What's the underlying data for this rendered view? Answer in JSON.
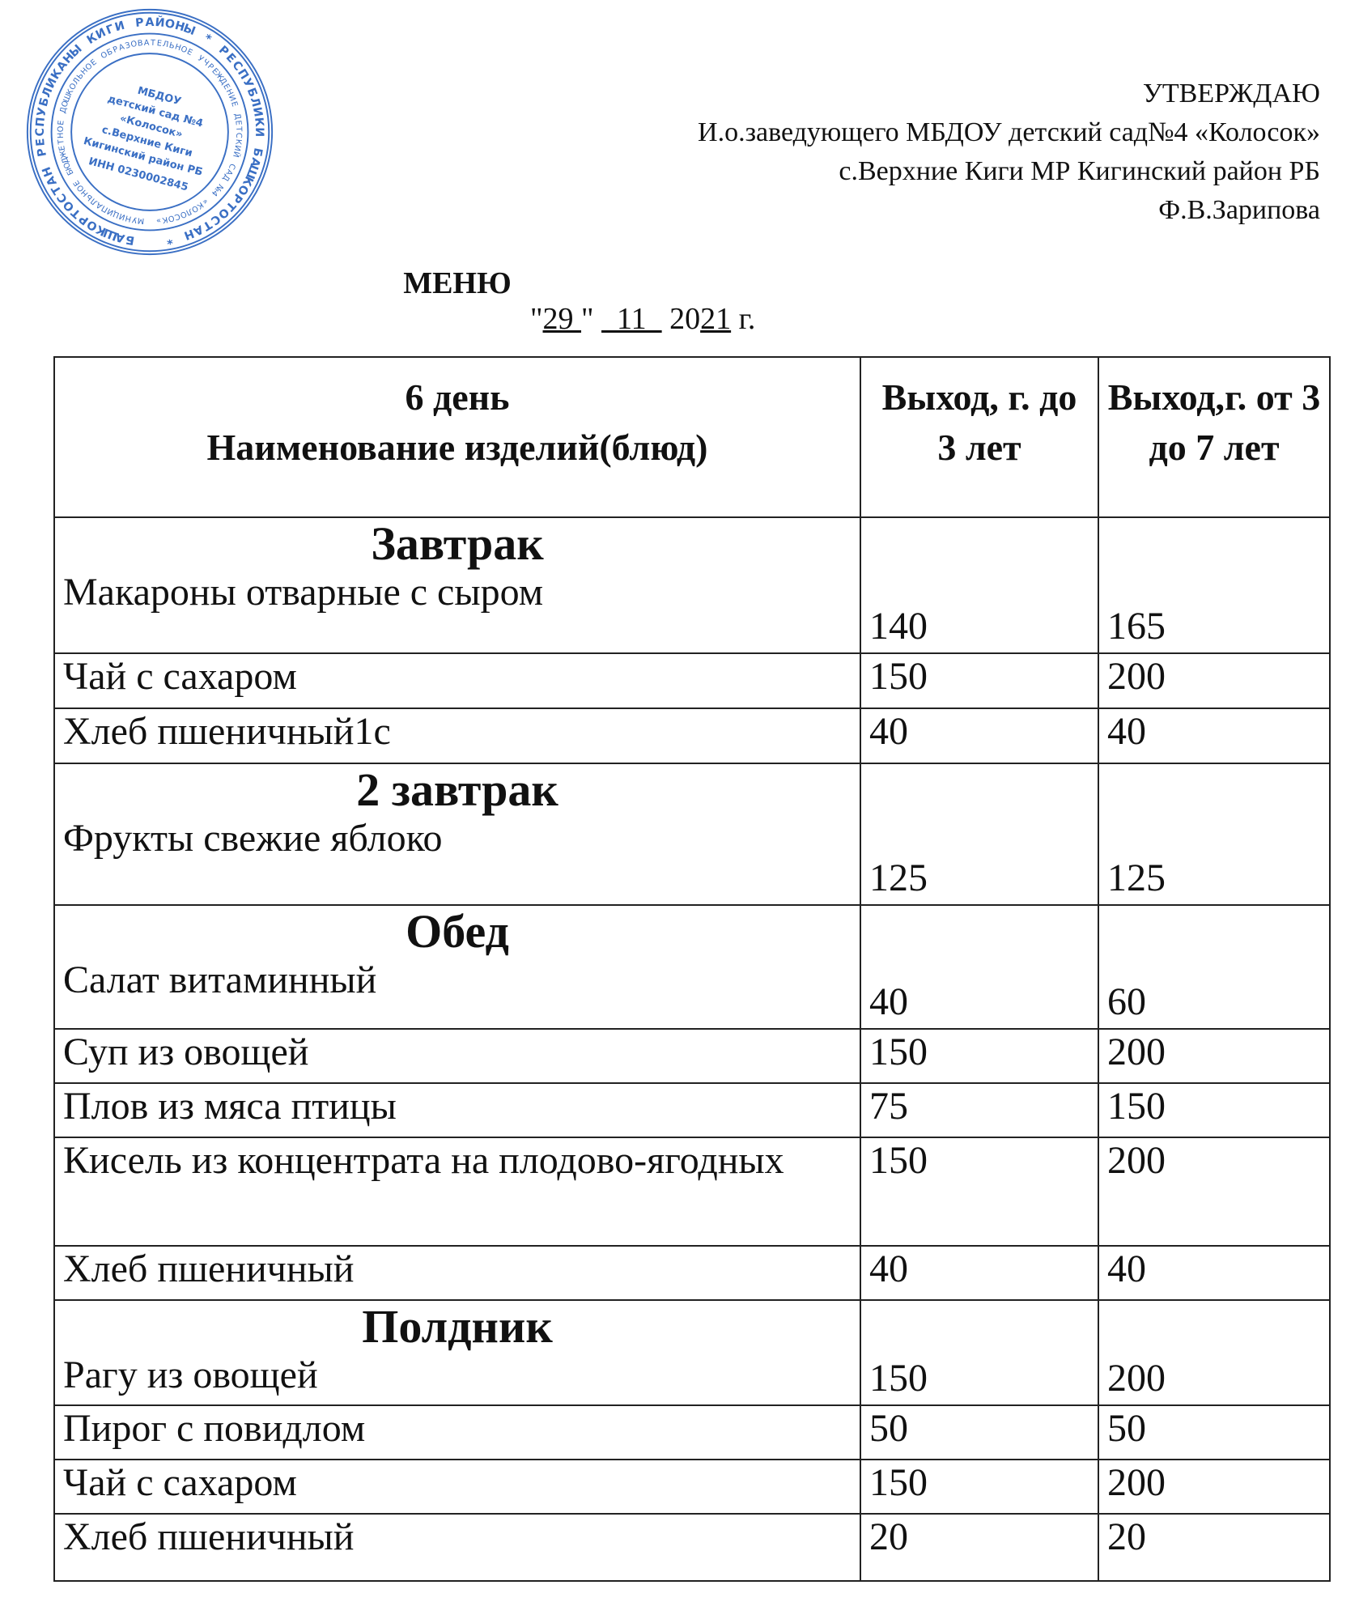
{
  "approval": {
    "heading": "УТВЕРЖДАЮ",
    "line1": "И.о.заведующего МБДОУ детский сад№4 «Колосок»",
    "line2": "с.Верхние Киги МР Кигинский район РБ",
    "signatory": "Ф.В.Зарипова"
  },
  "stamp": {
    "outer_text": "БАШКОРТОСТАН РЕСПУБЛИКАНЫ КИГИ РАЙОНЫ * РЕСПУБЛИКИ БАШКОРТОСТАН *",
    "inner_text": "МУНИЦИПАЛЬНОЕ БЮДЖЕТНОЕ ДОШКОЛЬНОЕ ОБРАЗОВАТЕЛЬНОЕ УЧРЕЖДЕНИЕ ДЕТСКИЙ САД №4 «КОЛОСОК»",
    "center": [
      "МБДОУ",
      "детский сад №4",
      "«Колосок»",
      "с.Верхние Киги",
      "Кигинский район РБ"
    ],
    "inn": "ИНН 0230002845",
    "color": "#3a6fc4"
  },
  "title": "МЕНЮ",
  "date": {
    "q1": "\"",
    "day": "29 ",
    "q2": "\" ",
    "month": "  11  ",
    "year_prefix": "20",
    "year_suffix": "21",
    "suffix": " г."
  },
  "table": {
    "header": {
      "col1_line1": "6 день",
      "col1_line2": "Наименование изделий(блюд)",
      "col2": "Выход, г. до 3 лет",
      "col3": "Выход,г. от 3 до 7 лет"
    },
    "sections": [
      {
        "name": "Завтрак",
        "items": [
          {
            "dish": "Макароны отварные с сыром",
            "under3": "140",
            "from3to7": "165"
          },
          {
            "dish": "Чай с сахаром",
            "under3": "150",
            "from3to7": "200"
          },
          {
            "dish": "Хлеб пшеничный1с",
            "under3": "40",
            "from3to7": "40"
          }
        ]
      },
      {
        "name": "2 завтрак",
        "items": [
          {
            "dish": "Фрукты свежие яблоко",
            "under3": "125",
            "from3to7": "125"
          }
        ]
      },
      {
        "name": "Обед",
        "items": [
          {
            "dish": "Салат витаминный",
            "under3": "40",
            "from3to7": "60"
          },
          {
            "dish": "Суп из овощей",
            "under3": "150",
            "from3to7": "200"
          },
          {
            "dish": "Плов из мяса птицы",
            "under3": "75",
            "from3to7": "150"
          },
          {
            "dish": "Кисель из концентрата на плодово-ягодных",
            "under3": "150",
            "from3to7": "200"
          },
          {
            "dish": "Хлеб пшеничный",
            "under3": "40",
            "from3to7": "40"
          }
        ]
      },
      {
        "name": "Полдник",
        "items": [
          {
            "dish": "Рагу из овощей",
            "under3": "150",
            "from3to7": "200"
          },
          {
            "dish": "Пирог с повидлом",
            "under3": "50",
            "from3to7": "50"
          },
          {
            "dish": "Чай с сахаром",
            "under3": "150",
            "from3to7": "200"
          },
          {
            "dish": "Хлеб пшеничный",
            "under3": "20",
            "from3to7": "20"
          }
        ]
      }
    ]
  }
}
